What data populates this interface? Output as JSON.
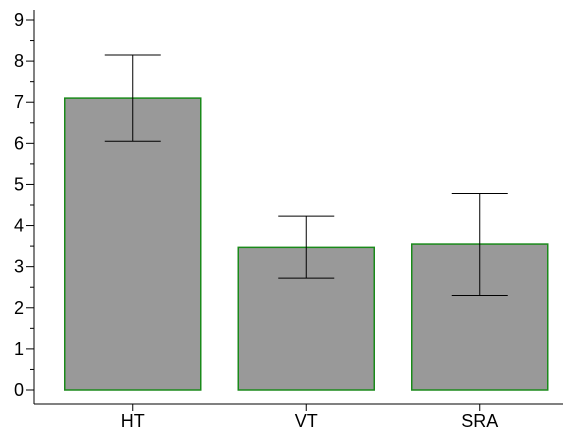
{
  "chart_data": {
    "type": "bar",
    "title": "",
    "xlabel": "",
    "ylabel": "",
    "categories": [
      "HT",
      "VT",
      "SRA"
    ],
    "values": [
      7.1,
      3.47,
      3.55
    ],
    "error_bars": {
      "upper": [
        8.15,
        4.23,
        4.78
      ],
      "lower": [
        6.05,
        2.72,
        2.3
      ]
    },
    "ylim": [
      0,
      9
    ],
    "y_ticks": [
      0,
      1,
      2,
      3,
      4,
      5,
      6,
      7,
      8,
      9
    ],
    "grid": false,
    "colors": {
      "bar_fill": "#999999",
      "bar_edge": "#1a8a1a",
      "error_bar": "#000000",
      "axis": "#000000"
    }
  }
}
